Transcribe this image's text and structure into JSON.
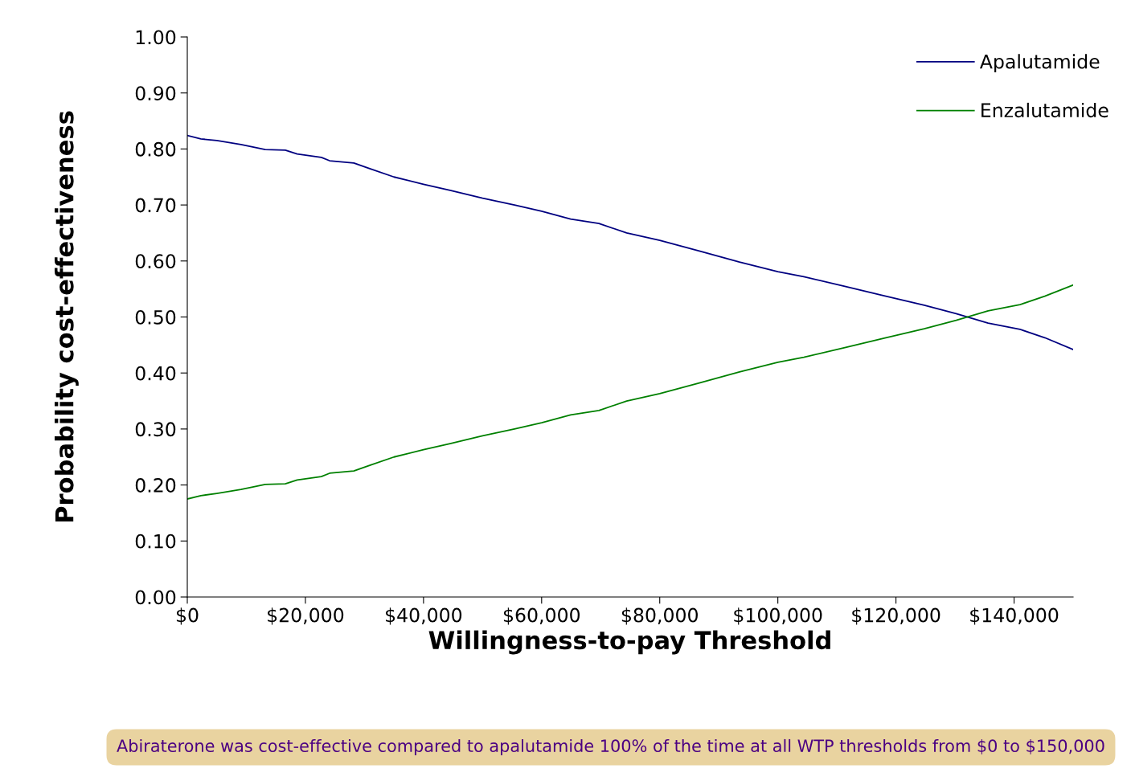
{
  "chart_data": {
    "type": "line",
    "xlabel": "Willingness-to-pay Threshold",
    "ylabel": "Probability cost-effectiveness",
    "x": [
      0,
      2300,
      5000,
      9100,
      13200,
      16600,
      18600,
      22700,
      24100,
      28200,
      30900,
      35000,
      40000,
      44500,
      50000,
      55400,
      60000,
      64900,
      69700,
      74400,
      80000,
      86700,
      93500,
      100000,
      104400,
      111200,
      118000,
      124800,
      130200,
      135600,
      141000,
      145200,
      150000
    ],
    "series": [
      {
        "name": "Apalutamide",
        "color": "#000080",
        "values": [
          0.824,
          0.818,
          0.815,
          0.808,
          0.799,
          0.798,
          0.791,
          0.785,
          0.779,
          0.775,
          0.765,
          0.75,
          0.737,
          0.726,
          0.712,
          0.7,
          0.689,
          0.675,
          0.667,
          0.65,
          0.637,
          0.618,
          0.598,
          0.581,
          0.572,
          0.555,
          0.538,
          0.521,
          0.506,
          0.489,
          0.478,
          0.463,
          0.442
        ]
      },
      {
        "name": "Enzalutamide",
        "color": "#008000",
        "values": [
          0.175,
          0.181,
          0.185,
          0.192,
          0.201,
          0.202,
          0.209,
          0.215,
          0.221,
          0.225,
          0.235,
          0.25,
          0.263,
          0.274,
          0.288,
          0.3,
          0.311,
          0.325,
          0.333,
          0.35,
          0.363,
          0.382,
          0.402,
          0.419,
          0.428,
          0.445,
          0.462,
          0.479,
          0.494,
          0.511,
          0.522,
          0.537,
          0.557
        ]
      }
    ],
    "xlim": [
      0,
      150000
    ],
    "ylim": [
      0,
      1
    ],
    "xticks": [
      {
        "value": 0,
        "label": "$0"
      },
      {
        "value": 20000,
        "label": "$20,000"
      },
      {
        "value": 40000,
        "label": "$40,000"
      },
      {
        "value": 60000,
        "label": "$60,000"
      },
      {
        "value": 80000,
        "label": "$80,000"
      },
      {
        "value": 100000,
        "label": "$100,000"
      },
      {
        "value": 120000,
        "label": "$120,000"
      },
      {
        "value": 140000,
        "label": "$140,000"
      }
    ],
    "yticks": [
      {
        "value": 0,
        "label": "0.00"
      },
      {
        "value": 0.1,
        "label": "0.10"
      },
      {
        "value": 0.2,
        "label": "0.20"
      },
      {
        "value": 0.3,
        "label": "0.30"
      },
      {
        "value": 0.4,
        "label": "0.40"
      },
      {
        "value": 0.5,
        "label": "0.50"
      },
      {
        "value": 0.6,
        "label": "0.60"
      },
      {
        "value": 0.7,
        "label": "0.70"
      },
      {
        "value": 0.8,
        "label": "0.80"
      },
      {
        "value": 0.9,
        "label": "0.90"
      },
      {
        "value": 1,
        "label": "1.00"
      }
    ],
    "annotations": [
      "Abiraterone was cost-effective compared to apalutamide 100% of the time at all WTP thresholds from $0 to $150,000"
    ],
    "grid": false,
    "legend": "top right",
    "marker": "none",
    "line_style": "solid"
  }
}
